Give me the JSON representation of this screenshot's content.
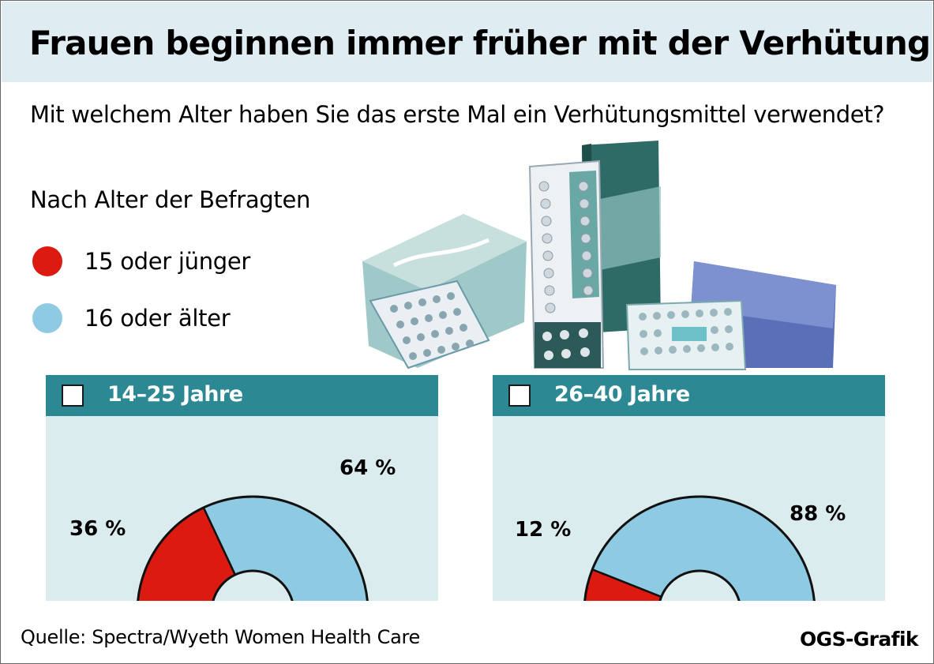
{
  "header": {
    "title": "Frauen beginnen immer früher mit der Verhütung",
    "subtitle": "Mit welchem Alter haben Sie das erste Mal ein Verhütungsmittel verwendet?"
  },
  "legend": {
    "heading": "Nach Alter der Befragten",
    "items": [
      {
        "label": "15 oder jünger",
        "color": "#dd1a10"
      },
      {
        "label": "16 oder älter",
        "color": "#8ecae2"
      }
    ]
  },
  "colors": {
    "title_bar": "#dfecf1",
    "panel_bg": "#dbecee",
    "panel_header": "#2c8892"
  },
  "chart_data": [
    {
      "type": "pie",
      "variant": "half-donut gauge",
      "title": "14–25 Jahre",
      "categories": [
        "15 oder jünger",
        "16 oder älter"
      ],
      "values": [
        36,
        64
      ],
      "labels": [
        "36 %",
        "64 %"
      ],
      "colors": [
        "#dd1a10",
        "#8ecae2"
      ]
    },
    {
      "type": "pie",
      "variant": "half-donut gauge",
      "title": "26–40 Jahre",
      "categories": [
        "15 oder jünger",
        "16 oder älter"
      ],
      "values": [
        12,
        88
      ],
      "labels": [
        "12 %",
        "88 %"
      ],
      "colors": [
        "#dd1a10",
        "#8ecae2"
      ]
    }
  ],
  "footer": {
    "source": "Quelle: Spectra/Wyeth Women Health Care",
    "credit": "OGS-Grafik"
  }
}
